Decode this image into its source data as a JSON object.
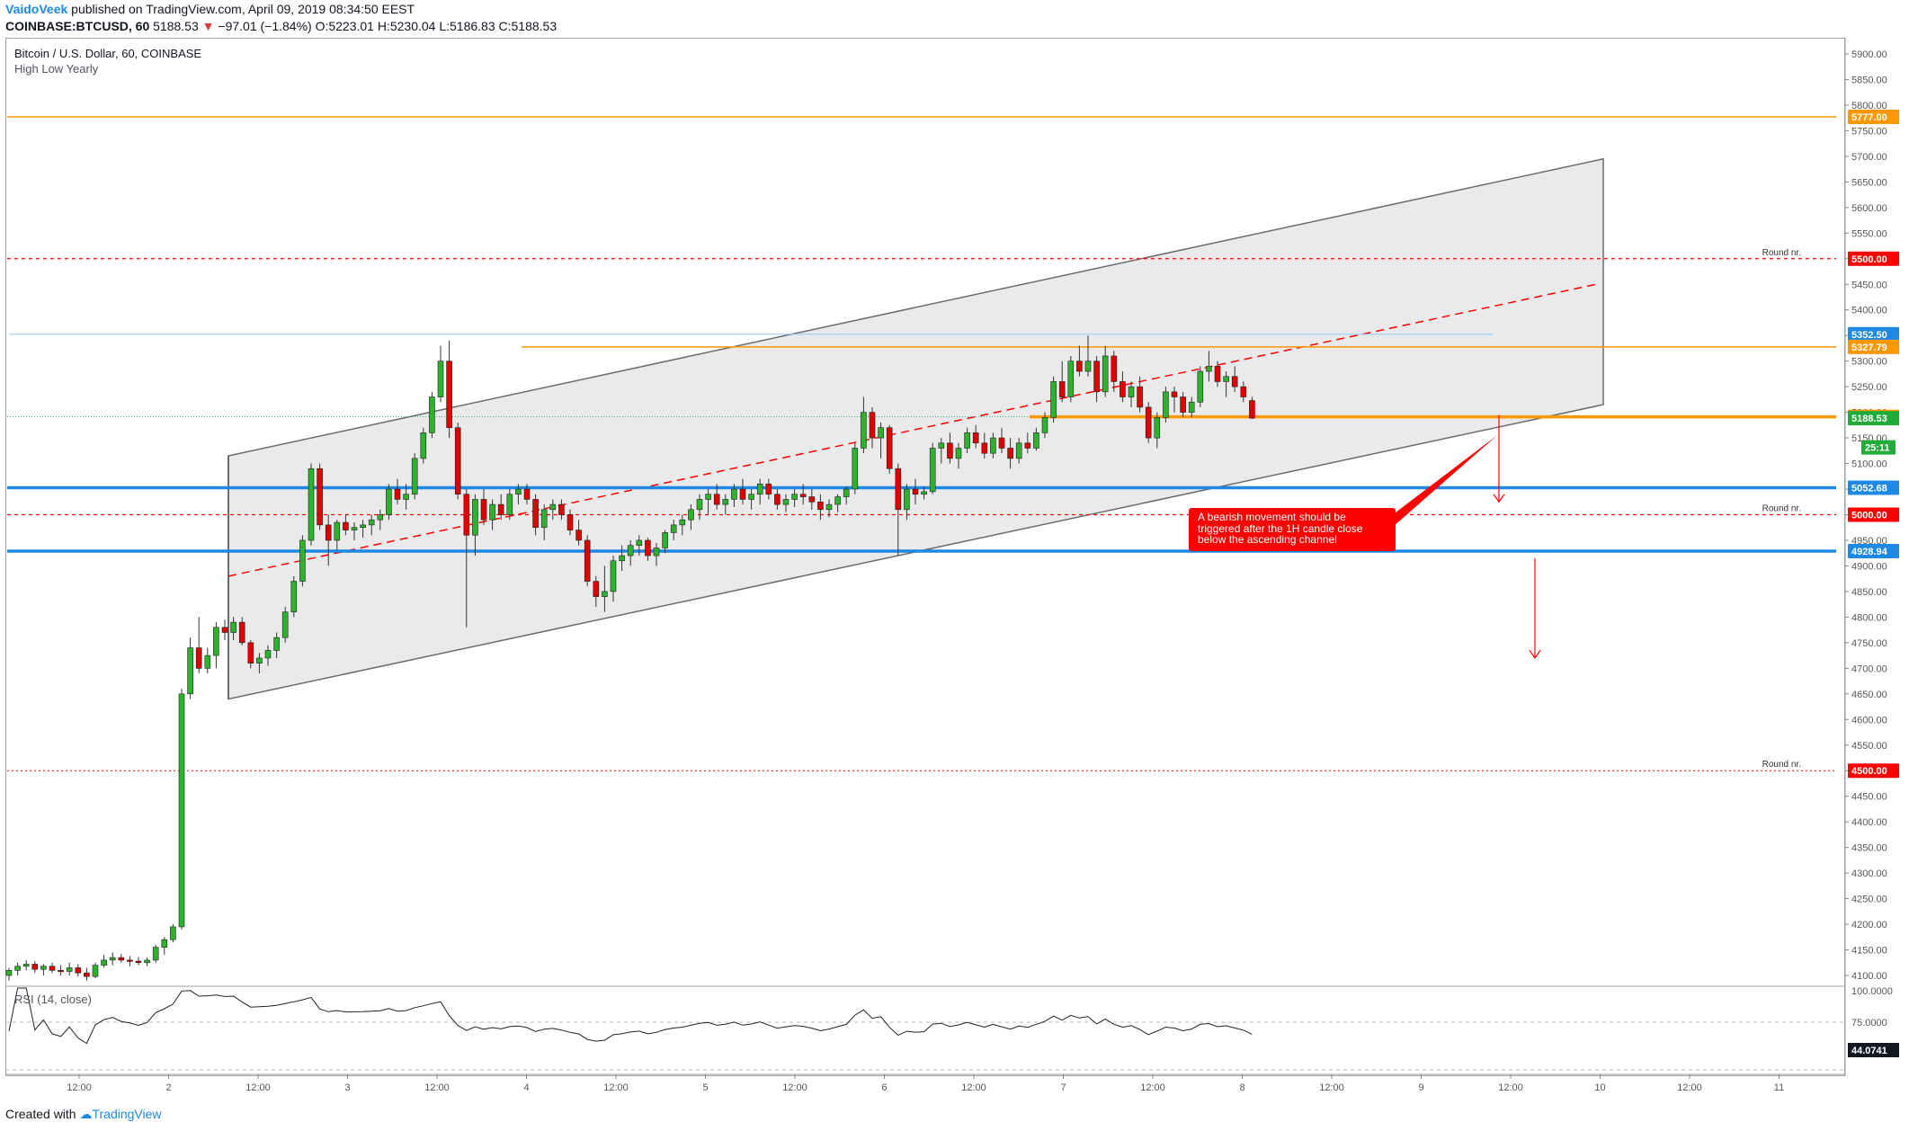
{
  "header": {
    "author": "VaidoVeek",
    "published": "published on TradingView.com, April 09, 2019 08:34:50 EEST",
    "symbol": "COINBASE:BTCUSD, 60",
    "last": "5188.53",
    "change": "−97.01 (−1.84%)",
    "ohlc": "O:5223.01 H:5230.04 L:5186.83 C:5188.53"
  },
  "legend": {
    "title": "Bitcoin / U.S. Dollar, 60, COINBASE",
    "indicator": "High Low Yearly",
    "rsi": "RSI (14, close)"
  },
  "note": "A bearish movement should be triggered after the 1H candle close below the ascending channel",
  "footer": {
    "created_with": "Created with",
    "brand": "TradingView"
  },
  "colors": {
    "bull": "#26a69a",
    "bullFill": "#2db22d",
    "bear": "#e00000",
    "orange": "#ff9800",
    "blue": "#1e88e5",
    "red": "#ff0000",
    "channel": "#e3e3e3"
  },
  "chart_data": {
    "type": "candlestick",
    "title": "Bitcoin / U.S. Dollar, 60, COINBASE",
    "y_axis": {
      "range": [
        4070,
        5935
      ],
      "ticks": [
        5900,
        5850,
        5800,
        5750,
        5700,
        5650,
        5600,
        5550,
        5500,
        5450,
        5400,
        5350,
        5300,
        5250,
        5200,
        5150,
        5100,
        5050,
        5000,
        4950,
        4900,
        4850,
        4800,
        4750,
        4700,
        4650,
        4600,
        4550,
        4500,
        4450,
        4400,
        4350,
        4300,
        4250,
        4200,
        4150,
        4100
      ]
    },
    "x_axis": {
      "ticks": [
        "12:00",
        "2",
        "12:00",
        "3",
        "12:00",
        "4",
        "12:00",
        "5",
        "12:00",
        "6",
        "12:00",
        "7",
        "12:00",
        "8",
        "12:00",
        "9",
        "12:00",
        "10",
        "12:00",
        "11"
      ]
    },
    "horizontal_levels": [
      {
        "value": 5777.0,
        "label": "5777.00",
        "color": "#ff9800",
        "style": "solid"
      },
      {
        "value": 5500.0,
        "label": "5500.00",
        "color": "#ff0000",
        "style": "dashed",
        "note": "Round nr."
      },
      {
        "value": 5352.5,
        "label": "5352.50",
        "color": "#90caf9",
        "style": "thin"
      },
      {
        "value": 5327.79,
        "label": "5327.79",
        "color": "#ff9800",
        "style": "solid"
      },
      {
        "value": 5191.1,
        "label": "5191.10",
        "color": "#ff9800",
        "style": "thick"
      },
      {
        "value": 5052.68,
        "label": "5052.68",
        "color": "#1e88e5",
        "style": "thick"
      },
      {
        "value": 5000.0,
        "label": "5000.00",
        "color": "#ff0000",
        "style": "dashed",
        "note": "Round nr."
      },
      {
        "value": 4928.94,
        "label": "4928.94",
        "color": "#1e88e5",
        "style": "thick"
      },
      {
        "value": 4500.0,
        "label": "4500.00",
        "color": "#ff0000",
        "style": "dotted",
        "note": "Round nr."
      }
    ],
    "price_labels": [
      {
        "value": 5188.53,
        "label": "5188.53",
        "kind": "last"
      },
      {
        "value": 5155,
        "label": "25:11",
        "kind": "timer"
      }
    ],
    "candles_ohlc": [
      [
        4100,
        4115,
        4090,
        4110
      ],
      [
        4110,
        4125,
        4100,
        4118
      ],
      [
        4118,
        4130,
        4110,
        4122
      ],
      [
        4122,
        4128,
        4105,
        4112
      ],
      [
        4112,
        4122,
        4100,
        4118
      ],
      [
        4118,
        4125,
        4105,
        4110
      ],
      [
        4110,
        4120,
        4100,
        4108
      ],
      [
        4108,
        4125,
        4100,
        4115
      ],
      [
        4115,
        4122,
        4098,
        4105
      ],
      [
        4105,
        4115,
        4090,
        4098
      ],
      [
        4098,
        4125,
        4095,
        4120
      ],
      [
        4120,
        4140,
        4115,
        4130
      ],
      [
        4130,
        4145,
        4120,
        4135
      ],
      [
        4135,
        4142,
        4125,
        4130
      ],
      [
        4130,
        4138,
        4118,
        4128
      ],
      [
        4128,
        4136,
        4120,
        4125
      ],
      [
        4125,
        4135,
        4118,
        4130
      ],
      [
        4130,
        4160,
        4125,
        4155
      ],
      [
        4155,
        4175,
        4140,
        4170
      ],
      [
        4170,
        4200,
        4165,
        4195
      ],
      [
        4195,
        4660,
        4190,
        4650
      ],
      [
        4650,
        4760,
        4640,
        4740
      ],
      [
        4740,
        4800,
        4690,
        4700
      ],
      [
        4700,
        4740,
        4690,
        4725
      ],
      [
        4725,
        4790,
        4700,
        4780
      ],
      [
        4780,
        4795,
        4755,
        4770
      ],
      [
        4770,
        4800,
        4755,
        4790
      ],
      [
        4790,
        4800,
        4745,
        4750
      ],
      [
        4750,
        4755,
        4700,
        4710
      ],
      [
        4710,
        4730,
        4690,
        4720
      ],
      [
        4720,
        4745,
        4705,
        4735
      ],
      [
        4735,
        4770,
        4720,
        4760
      ],
      [
        4760,
        4820,
        4750,
        4810
      ],
      [
        4810,
        4880,
        4800,
        4870
      ],
      [
        4870,
        4960,
        4860,
        4950
      ],
      [
        4950,
        5100,
        4940,
        5090
      ],
      [
        5090,
        5100,
        4970,
        4980
      ],
      [
        4980,
        5000,
        4900,
        4950
      ],
      [
        4950,
        4990,
        4930,
        4985
      ],
      [
        4985,
        5000,
        4960,
        4970
      ],
      [
        4970,
        4985,
        4950,
        4975
      ],
      [
        4975,
        4990,
        4955,
        4980
      ],
      [
        4980,
        5000,
        4960,
        4990
      ],
      [
        4990,
        5010,
        4970,
        5000
      ],
      [
        5000,
        5060,
        4990,
        5050
      ],
      [
        5050,
        5070,
        5020,
        5030
      ],
      [
        5030,
        5060,
        5010,
        5040
      ],
      [
        5040,
        5120,
        5030,
        5110
      ],
      [
        5110,
        5170,
        5100,
        5160
      ],
      [
        5160,
        5240,
        5150,
        5230
      ],
      [
        5230,
        5330,
        5220,
        5300
      ],
      [
        5300,
        5340,
        5150,
        5170
      ],
      [
        5170,
        5180,
        5030,
        5040
      ],
      [
        5040,
        5050,
        4780,
        4960
      ],
      [
        4960,
        5040,
        4920,
        5030
      ],
      [
        5030,
        5050,
        4980,
        4990
      ],
      [
        4990,
        5030,
        4970,
        5020
      ],
      [
        5020,
        5040,
        4990,
        5000
      ],
      [
        5000,
        5050,
        4990,
        5040
      ],
      [
        5040,
        5060,
        5020,
        5050
      ],
      [
        5050,
        5060,
        5020,
        5030
      ],
      [
        5030,
        5040,
        4960,
        4975
      ],
      [
        4975,
        5020,
        4950,
        5010
      ],
      [
        5010,
        5030,
        4990,
        5020
      ],
      [
        5020,
        5030,
        4990,
        5000
      ],
      [
        5000,
        5010,
        4960,
        4970
      ],
      [
        4970,
        4990,
        4940,
        4950
      ],
      [
        4950,
        4960,
        4860,
        4870
      ],
      [
        4870,
        4880,
        4820,
        4840
      ],
      [
        4840,
        4900,
        4810,
        4850
      ],
      [
        4850,
        4920,
        4830,
        4910
      ],
      [
        4910,
        4940,
        4890,
        4920
      ],
      [
        4920,
        4950,
        4900,
        4940
      ],
      [
        4940,
        4960,
        4920,
        4950
      ],
      [
        4950,
        4955,
        4910,
        4920
      ],
      [
        4920,
        4945,
        4900,
        4935
      ],
      [
        4935,
        4970,
        4925,
        4965
      ],
      [
        4965,
        4990,
        4950,
        4980
      ],
      [
        4980,
        5000,
        4960,
        4990
      ],
      [
        4990,
        5020,
        4970,
        5010
      ],
      [
        5010,
        5040,
        4990,
        5030
      ],
      [
        5030,
        5050,
        5000,
        5040
      ],
      [
        5040,
        5060,
        5010,
        5020
      ],
      [
        5020,
        5040,
        5000,
        5030
      ],
      [
        5030,
        5060,
        5015,
        5050
      ],
      [
        5050,
        5070,
        5020,
        5030
      ],
      [
        5030,
        5050,
        5010,
        5040
      ],
      [
        5040,
        5070,
        5020,
        5060
      ],
      [
        5060,
        5070,
        5030,
        5040
      ],
      [
        5040,
        5050,
        5010,
        5020
      ],
      [
        5020,
        5040,
        5005,
        5030
      ],
      [
        5030,
        5050,
        5015,
        5040
      ],
      [
        5040,
        5060,
        5020,
        5035
      ],
      [
        5035,
        5050,
        5010,
        5025
      ],
      [
        5025,
        5040,
        4990,
        5010
      ],
      [
        5010,
        5030,
        4995,
        5020
      ],
      [
        5020,
        5040,
        5005,
        5035
      ],
      [
        5035,
        5055,
        5020,
        5050
      ],
      [
        5050,
        5140,
        5040,
        5130
      ],
      [
        5130,
        5230,
        5120,
        5200
      ],
      [
        5200,
        5210,
        5130,
        5150
      ],
      [
        5150,
        5180,
        5110,
        5170
      ],
      [
        5170,
        5175,
        5080,
        5090
      ],
      [
        5090,
        5100,
        4920,
        5010
      ],
      [
        5010,
        5060,
        4990,
        5050
      ],
      [
        5050,
        5070,
        5020,
        5040
      ],
      [
        5040,
        5055,
        5030,
        5045
      ],
      [
        5045,
        5140,
        5040,
        5130
      ],
      [
        5130,
        5150,
        5100,
        5140
      ],
      [
        5140,
        5160,
        5100,
        5110
      ],
      [
        5110,
        5140,
        5090,
        5130
      ],
      [
        5130,
        5170,
        5120,
        5160
      ],
      [
        5160,
        5175,
        5130,
        5140
      ],
      [
        5140,
        5160,
        5110,
        5120
      ],
      [
        5120,
        5160,
        5110,
        5150
      ],
      [
        5150,
        5170,
        5120,
        5130
      ],
      [
        5130,
        5150,
        5090,
        5110
      ],
      [
        5110,
        5150,
        5100,
        5140
      ],
      [
        5140,
        5160,
        5120,
        5130
      ],
      [
        5130,
        5170,
        5125,
        5160
      ],
      [
        5160,
        5200,
        5150,
        5190
      ],
      [
        5190,
        5270,
        5180,
        5260
      ],
      [
        5260,
        5300,
        5220,
        5230
      ],
      [
        5230,
        5310,
        5220,
        5300
      ],
      [
        5300,
        5330,
        5270,
        5280
      ],
      [
        5280,
        5350,
        5270,
        5300
      ],
      [
        5300,
        5310,
        5220,
        5240
      ],
      [
        5240,
        5330,
        5230,
        5310
      ],
      [
        5310,
        5320,
        5240,
        5260
      ],
      [
        5260,
        5280,
        5220,
        5230
      ],
      [
        5230,
        5260,
        5210,
        5250
      ],
      [
        5250,
        5270,
        5200,
        5210
      ],
      [
        5210,
        5220,
        5140,
        5150
      ],
      [
        5150,
        5200,
        5130,
        5190
      ],
      [
        5190,
        5250,
        5180,
        5240
      ],
      [
        5240,
        5250,
        5200,
        5230
      ],
      [
        5230,
        5240,
        5190,
        5200
      ],
      [
        5200,
        5230,
        5190,
        5220
      ],
      [
        5220,
        5290,
        5210,
        5280
      ],
      [
        5280,
        5320,
        5260,
        5290
      ],
      [
        5290,
        5300,
        5250,
        5260
      ],
      [
        5260,
        5280,
        5230,
        5270
      ],
      [
        5270,
        5290,
        5240,
        5250
      ],
      [
        5250,
        5260,
        5220,
        5230
      ],
      [
        5223.01,
        5230.04,
        5186.83,
        5188.53
      ]
    ]
  }
}
